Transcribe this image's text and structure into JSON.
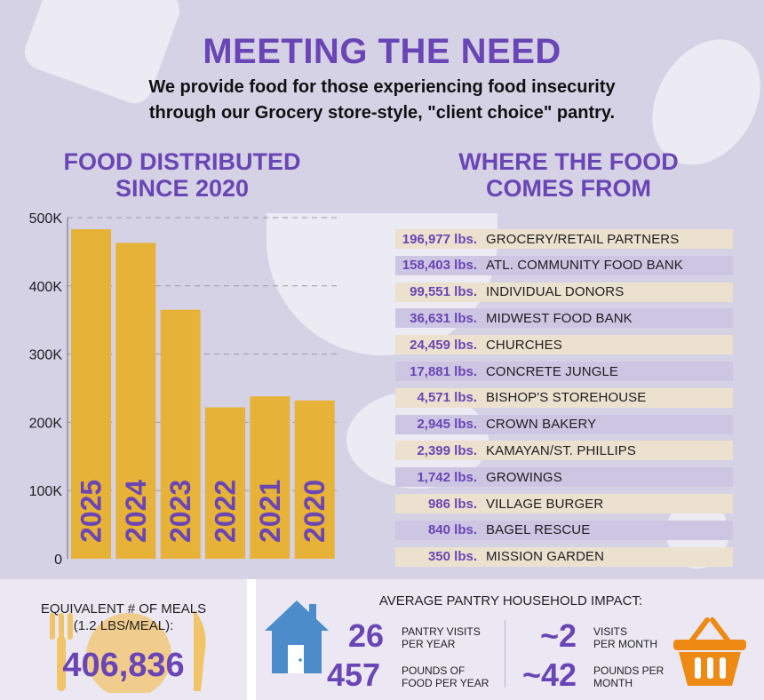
{
  "header": {
    "title": "MEETING THE NEED",
    "subtitle_line1": "We provide food for those experiencing food insecurity",
    "subtitle_line2": "through our Grocery store-style, \"client choice\" pantry."
  },
  "chart_section": {
    "heading_line1": "FOOD DISTRIBUTED",
    "heading_line2": "SINCE 2020"
  },
  "sources_section": {
    "heading_line1": "WHERE THE FOOD",
    "heading_line2": "COMES FROM"
  },
  "chart_data": {
    "type": "bar",
    "title": "FOOD DISTRIBUTED SINCE 2020",
    "categories": [
      "2025",
      "2024",
      "2023",
      "2022",
      "2021",
      "2020"
    ],
    "values": [
      483000,
      463000,
      365000,
      222000,
      238000,
      232000
    ],
    "ylim": [
      0,
      500000
    ],
    "yticks": [
      0,
      100000,
      200000,
      300000,
      400000,
      500000
    ],
    "ytick_labels": [
      "0",
      "100K",
      "200K",
      "300K",
      "400K",
      "500K"
    ],
    "grid": true,
    "bar_color": "#e6b237",
    "label_color": "#6a45b5"
  },
  "sources": [
    {
      "amount": "196,977 lbs.",
      "name": "GROCERY/RETAIL PARTNERS"
    },
    {
      "amount": "158,403 lbs.",
      "name": "ATL. COMMUNITY FOOD BANK"
    },
    {
      "amount": "99,551 lbs.",
      "name": "INDIVIDUAL DONORS"
    },
    {
      "amount": "36,631 lbs.",
      "name": "MIDWEST FOOD BANK"
    },
    {
      "amount": "24,459 lbs.",
      "name": "CHURCHES"
    },
    {
      "amount": "17,881 lbs.",
      "name": "CONCRETE JUNGLE"
    },
    {
      "amount": "4,571 lbs.",
      "name": "BISHOP'S STOREHOUSE"
    },
    {
      "amount": "2,945 lbs.",
      "name": "CROWN BAKERY"
    },
    {
      "amount": "2,399 lbs.",
      "name": "KAMAYAN/ST. PHILLIPS"
    },
    {
      "amount": "1,742 lbs.",
      "name": "GROWINGS"
    },
    {
      "amount": "986 lbs.",
      "name": "VILLAGE BURGER"
    },
    {
      "amount": "840 lbs.",
      "name": "BAGEL RESCUE"
    },
    {
      "amount": "350 lbs.",
      "name": "MISSION GARDEN"
    }
  ],
  "meals": {
    "label_line1": "EQUIVALENT # OF MEALS",
    "label_line2": "(1.2 LBS/MEAL):",
    "value": "406,836"
  },
  "impact": {
    "title": "AVERAGE PANTRY HOUSEHOLD IMPACT:",
    "visits_year": {
      "value": "26",
      "label_line1": "PANTRY VISITS",
      "label_line2": "PER YEAR"
    },
    "pounds_year": {
      "value": "457",
      "label_line1": "POUNDS OF",
      "label_line2": "FOOD PER YEAR"
    },
    "visits_month": {
      "value": "~2",
      "label_line1": "VISITS",
      "label_line2": "PER MONTH"
    },
    "pounds_month": {
      "value": "~42",
      "label_line1": "POUNDS PER",
      "label_line2": "MONTH"
    }
  },
  "colors": {
    "accent": "#6a45b5",
    "bar": "#e6b237",
    "row_tan": "#ece1cf",
    "row_lav": "#cdc6e3",
    "house": "#4c8ccb",
    "basket": "#ee8a14"
  },
  "icons": [
    "fork-knife-plate-icon",
    "house-icon",
    "basket-icon"
  ]
}
